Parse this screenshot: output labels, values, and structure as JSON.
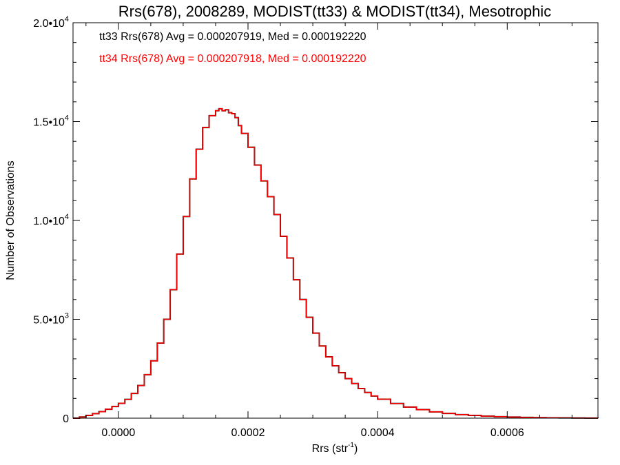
{
  "chart_data": {
    "type": "histogram",
    "title": "Rrs(678), 2008289, MODIST(tt33) & MODIST(tt34), Mesotrophic",
    "xlabel": {
      "main": "Rrs (str",
      "sup": "-1",
      "close": ")"
    },
    "ylabel": "Number of Observations",
    "xlim": [
      -7e-05,
      0.00074
    ],
    "ylim": [
      0,
      20000
    ],
    "x_ticks": [
      {
        "value": 0.0,
        "label": "0.0000"
      },
      {
        "value": 0.0002,
        "label": "0.0002"
      },
      {
        "value": 0.0004,
        "label": "0.0004"
      },
      {
        "value": 0.0006,
        "label": "0.0006"
      }
    ],
    "y_ticks": [
      {
        "value": 0,
        "mant": "0",
        "exp": ""
      },
      {
        "value": 5000,
        "mant": "5.0•10",
        "exp": "3"
      },
      {
        "value": 10000,
        "mant": "1.0•10",
        "exp": "4"
      },
      {
        "value": 15000,
        "mant": "1.5•10",
        "exp": "4"
      },
      {
        "value": 20000,
        "mant": "2.0•10",
        "exp": "4"
      }
    ],
    "annotations": [
      {
        "text": "tt33 Rrs(678) Avg = 0.000207919, Med = 0.000192220",
        "color": "#000000"
      },
      {
        "text": "tt34 Rrs(678) Avg = 0.000207918, Med = 0.000192220",
        "color": "#ff0000"
      }
    ],
    "series": [
      {
        "name": "tt33",
        "color": "#000000",
        "x": [
          -7e-05,
          -6e-05,
          -5e-05,
          -4e-05,
          -3e-05,
          -2e-05,
          -1e-05,
          0.0,
          1e-05,
          2e-05,
          3e-05,
          4e-05,
          5e-05,
          6e-05,
          7e-05,
          8e-05,
          9e-05,
          0.0001,
          0.00011,
          0.00012,
          0.00013,
          0.00014,
          0.00015,
          0.000155,
          0.00016,
          0.000165,
          0.00017,
          0.000175,
          0.00018,
          0.000185,
          0.00019,
          0.0002,
          0.00021,
          0.00022,
          0.00023,
          0.00024,
          0.00025,
          0.00026,
          0.00027,
          0.00028,
          0.00029,
          0.0003,
          0.00031,
          0.00032,
          0.00033,
          0.00034,
          0.00035,
          0.00036,
          0.00037,
          0.00038,
          0.00039,
          0.0004,
          0.00042,
          0.00044,
          0.00046,
          0.00048,
          0.0005,
          0.00052,
          0.00054,
          0.00056,
          0.00058,
          0.0006,
          0.00062,
          0.00064,
          0.00066,
          0.00068,
          0.0007,
          0.00072,
          0.00074
        ],
        "y": [
          0,
          60,
          140,
          230,
          330,
          450,
          590,
          750,
          950,
          1250,
          1650,
          2200,
          2900,
          3800,
          5000,
          6500,
          8300,
          10200,
          12100,
          13600,
          14700,
          15300,
          15550,
          15650,
          15550,
          15600,
          15450,
          15400,
          15200,
          14800,
          14400,
          13700,
          12800,
          12000,
          11200,
          10300,
          9200,
          8100,
          7000,
          6000,
          5100,
          4300,
          3650,
          3100,
          2650,
          2300,
          2000,
          1750,
          1500,
          1300,
          1120,
          960,
          740,
          560,
          430,
          320,
          240,
          180,
          140,
          100,
          75,
          55,
          40,
          28,
          18,
          12,
          8,
          5,
          3
        ]
      },
      {
        "name": "tt34",
        "color": "#ff0000",
        "x": [
          -7e-05,
          -6e-05,
          -5e-05,
          -4e-05,
          -3e-05,
          -2e-05,
          -1e-05,
          0.0,
          1e-05,
          2e-05,
          3e-05,
          4e-05,
          5e-05,
          6e-05,
          7e-05,
          8e-05,
          9e-05,
          0.0001,
          0.00011,
          0.00012,
          0.00013,
          0.00014,
          0.00015,
          0.000155,
          0.00016,
          0.000165,
          0.00017,
          0.000175,
          0.00018,
          0.000185,
          0.00019,
          0.0002,
          0.00021,
          0.00022,
          0.00023,
          0.00024,
          0.00025,
          0.00026,
          0.00027,
          0.00028,
          0.00029,
          0.0003,
          0.00031,
          0.00032,
          0.00033,
          0.00034,
          0.00035,
          0.00036,
          0.00037,
          0.00038,
          0.00039,
          0.0004,
          0.00042,
          0.00044,
          0.00046,
          0.00048,
          0.0005,
          0.00052,
          0.00054,
          0.00056,
          0.00058,
          0.0006,
          0.00062,
          0.00064,
          0.00066,
          0.00068,
          0.0007,
          0.00072,
          0.00074
        ],
        "y": [
          0,
          60,
          140,
          230,
          330,
          450,
          590,
          750,
          950,
          1250,
          1650,
          2200,
          2900,
          3800,
          5000,
          6500,
          8300,
          10200,
          12100,
          13600,
          14700,
          15300,
          15550,
          15650,
          15550,
          15600,
          15450,
          15400,
          15200,
          14800,
          14400,
          13700,
          12800,
          12000,
          11200,
          10300,
          9200,
          8100,
          7000,
          6000,
          5100,
          4300,
          3650,
          3100,
          2650,
          2300,
          2000,
          1750,
          1500,
          1300,
          1120,
          960,
          740,
          560,
          430,
          320,
          240,
          180,
          140,
          100,
          75,
          55,
          40,
          28,
          18,
          12,
          8,
          5,
          3
        ]
      }
    ]
  }
}
